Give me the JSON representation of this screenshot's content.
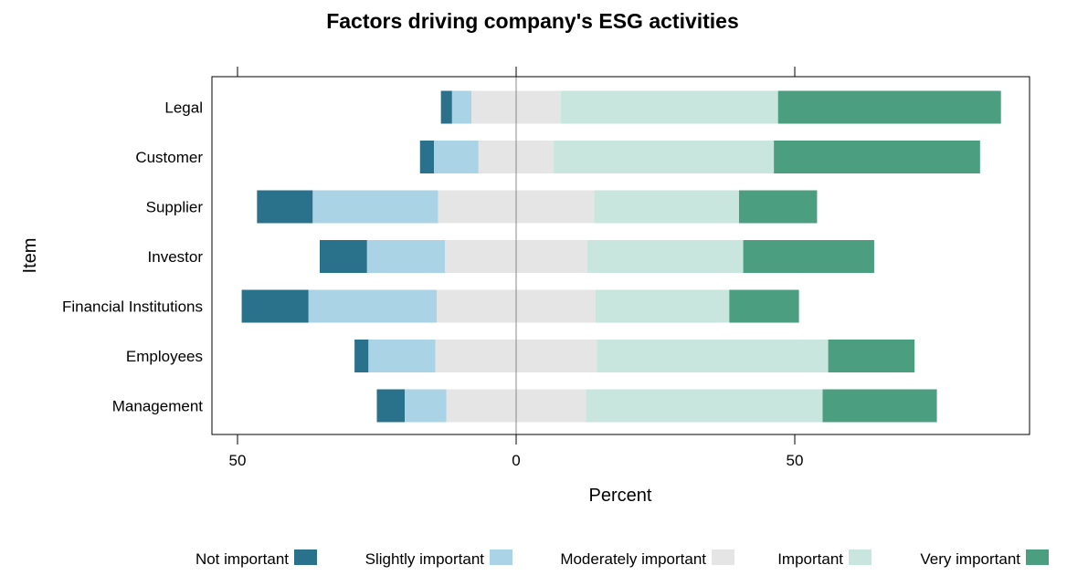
{
  "chart_data": {
    "type": "bar",
    "orientation": "horizontal",
    "stacked": "diverging",
    "title": "Factors driving company's ESG activities",
    "xlabel": "Percent",
    "ylabel": "Item",
    "xlim": [
      -50,
      90
    ],
    "x_ticks": [
      -50,
      0,
      50
    ],
    "x_tick_labels": [
      "50",
      "0",
      "50"
    ],
    "grid": false,
    "legend_position": "bottom",
    "categories": [
      "Legal",
      "Customer",
      "Supplier",
      "Investor",
      "Financial Institutions",
      "Employees",
      "Management"
    ],
    "series": [
      {
        "name": "Not important",
        "color": "#2a718c",
        "values": [
          2,
          2.5,
          10,
          8.5,
          12,
          2.5,
          5
        ]
      },
      {
        "name": "Slightly important",
        "color": "#abd3e6",
        "values": [
          3.5,
          8,
          22.5,
          14,
          23,
          12,
          7.5
        ]
      },
      {
        "name": "Moderately important",
        "color": "#e5e5e5",
        "values": [
          16,
          13.5,
          28,
          25.5,
          28.5,
          29,
          25
        ]
      },
      {
        "name": "Important",
        "color": "#c8e6dd",
        "values": [
          39,
          39.5,
          26,
          28,
          24,
          41.5,
          42.5
        ]
      },
      {
        "name": "Very important",
        "color": "#4b9e80",
        "values": [
          40,
          37,
          14,
          23.5,
          12.5,
          15.5,
          20.5
        ]
      }
    ]
  }
}
